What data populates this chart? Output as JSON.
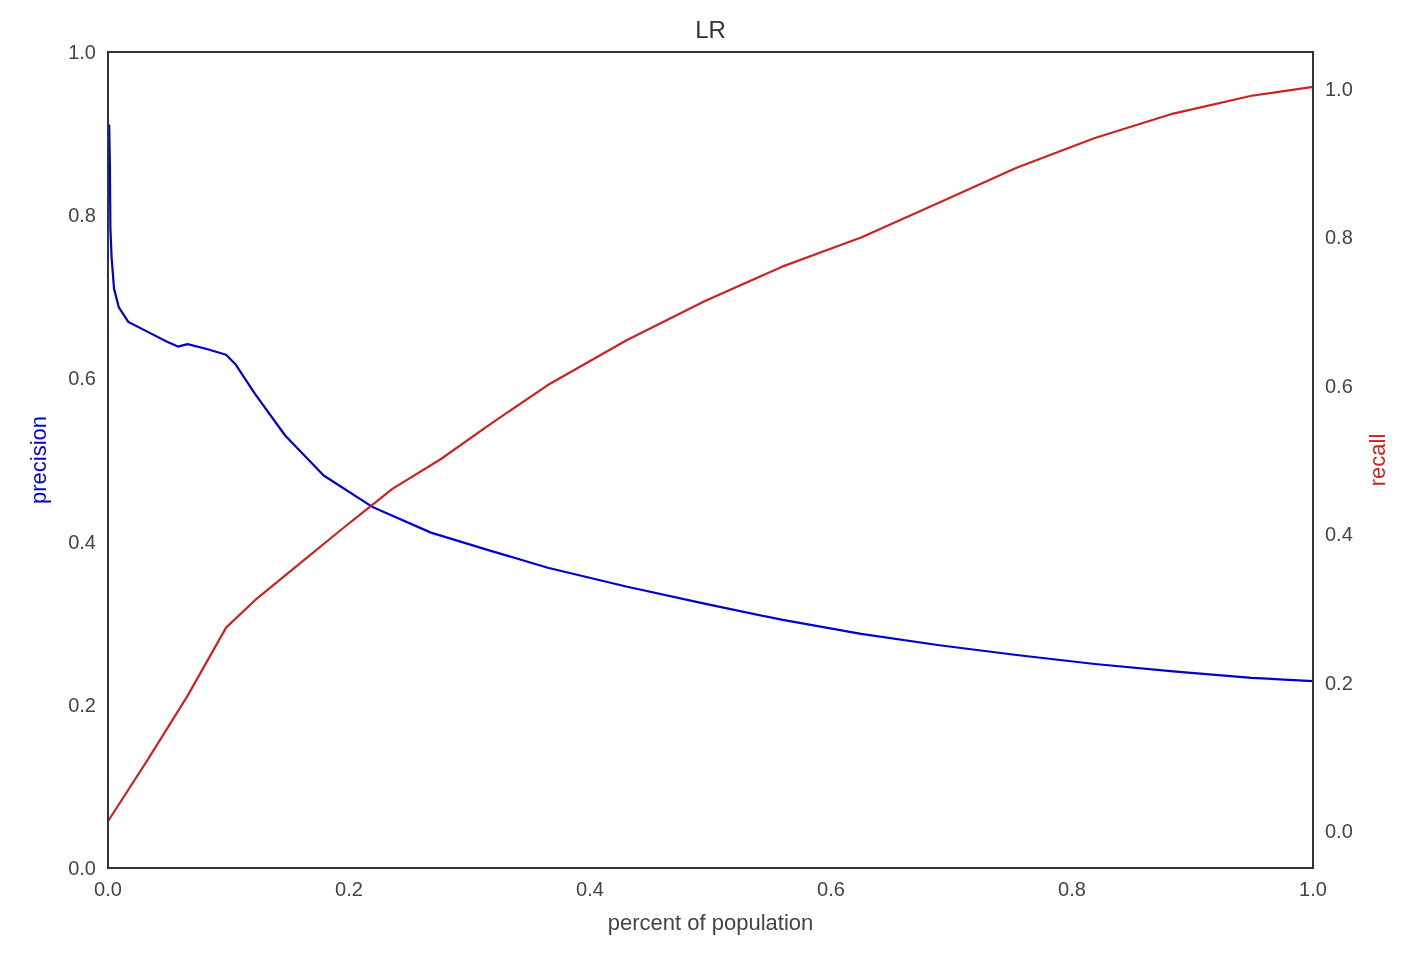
{
  "chart_data": {
    "type": "line",
    "title": "LR",
    "xlabel": "percent of population",
    "ylabel": "precision",
    "y2label": "recall",
    "xlim": [
      0,
      1
    ],
    "xticks": [
      {
        "value": 0,
        "label": "0.0"
      },
      0.2,
      0.4,
      0.6,
      0.8,
      {
        "value": 1,
        "label": "1.0"
      }
    ],
    "ylim": [
      0,
      1
    ],
    "yticks": [
      {
        "value": 0,
        "label": "0.0"
      },
      0.2,
      0.4,
      0.6,
      0.8,
      {
        "value": 1,
        "label": "1.0"
      }
    ],
    "y2lim": [
      -0.05,
      1.05
    ],
    "y2ticks": [
      {
        "value": 0,
        "label": "0.0"
      },
      0.2,
      0.4,
      0.6,
      0.8,
      {
        "value": 1,
        "label": "1.0"
      }
    ],
    "grid": false,
    "series": [
      {
        "color": "#0000cc",
        "x": [
          0.001,
          0.0016,
          0.002,
          0.003,
          0.005,
          0.009,
          0.017,
          0.033,
          0.049,
          0.058,
          0.066,
          0.082,
          0.098,
          0.106,
          0.122,
          0.147,
          0.179,
          0.22,
          0.268,
          0.317,
          0.365,
          0.43,
          0.495,
          0.56,
          0.625,
          0.69,
          0.754,
          0.819,
          0.884,
          0.949,
          1.0
        ],
        "values": [
          0.91,
          0.857,
          0.784,
          0.748,
          0.71,
          0.687,
          0.669,
          0.657,
          0.645,
          0.639,
          0.642,
          0.636,
          0.629,
          0.617,
          0.581,
          0.53,
          0.481,
          0.442,
          0.411,
          0.389,
          0.368,
          0.345,
          0.324,
          0.304,
          0.287,
          0.273,
          0.261,
          0.25,
          0.241,
          0.233,
          0.229
        ]
      },
      {
        "color": "#cc2222",
        "axis": "y2",
        "x": [
          0,
          0.033,
          0.066,
          0.098,
          0.122,
          0.155,
          0.195,
          0.236,
          0.276,
          0.317,
          0.365,
          0.43,
          0.495,
          0.56,
          0.625,
          0.69,
          0.754,
          0.819,
          0.884,
          0.949,
          1.0
        ],
        "values": [
          0.013,
          0.096,
          0.182,
          0.274,
          0.311,
          0.355,
          0.408,
          0.461,
          0.501,
          0.548,
          0.601,
          0.661,
          0.714,
          0.761,
          0.8,
          0.847,
          0.894,
          0.934,
          0.967,
          0.991,
          1.003
        ]
      }
    ]
  }
}
